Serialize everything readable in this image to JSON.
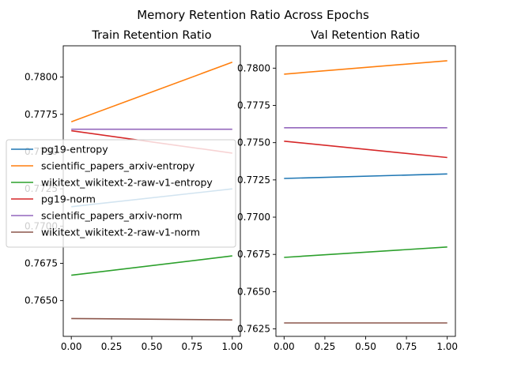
{
  "suptitle": "Memory Retention Ratio Across Epochs",
  "colors": {
    "pg19-entropy": "#1f77b4",
    "scientific_papers_arxiv-entropy": "#ff7f0e",
    "wikitext_wikitext-2-raw-v1-entropy": "#2ca02c",
    "pg19-norm": "#d62728",
    "scientific_papers_arxiv-norm": "#9467bd",
    "wikitext_wikitext-2-raw-v1-norm": "#8c564b"
  },
  "legend": {
    "placement": "center-left",
    "entries": [
      "pg19-entropy",
      "scientific_papers_arxiv-entropy",
      "wikitext_wikitext-2-raw-v1-entropy",
      "pg19-norm",
      "scientific_papers_arxiv-norm",
      "wikitext_wikitext-2-raw-v1-norm"
    ]
  },
  "chart_data": [
    {
      "type": "line",
      "title": "Train Retention Ratio",
      "xlabel": "",
      "ylabel": "",
      "xlim": [
        -0.05,
        1.05
      ],
      "ylim": [
        0.7626,
        0.7821
      ],
      "xticks": [
        "0.00",
        "0.25",
        "0.50",
        "0.75",
        "1.00"
      ],
      "xtick_values": [
        0,
        0.25,
        0.5,
        0.75,
        1.0
      ],
      "yticks": [
        "0.7650",
        "0.7675",
        "0.7700",
        "0.7725",
        "0.7750",
        "0.7775",
        "0.7800"
      ],
      "ytick_values": [
        0.765,
        0.7675,
        0.77,
        0.7725,
        0.775,
        0.7775,
        0.78
      ],
      "grid": false,
      "x": [
        0,
        1
      ],
      "series": [
        {
          "name": "pg19-entropy",
          "values": [
            0.7713,
            0.7725
          ]
        },
        {
          "name": "scientific_papers_arxiv-entropy",
          "values": [
            0.777,
            0.781
          ]
        },
        {
          "name": "wikitext_wikitext-2-raw-v1-entropy",
          "values": [
            0.7667,
            0.768
          ]
        },
        {
          "name": "pg19-norm",
          "values": [
            0.7764,
            0.7749
          ]
        },
        {
          "name": "scientific_papers_arxiv-norm",
          "values": [
            0.7765,
            0.7765
          ]
        },
        {
          "name": "wikitext_wikitext-2-raw-v1-norm",
          "values": [
            0.7638,
            0.7637
          ]
        }
      ]
    },
    {
      "type": "line",
      "title": "Val Retention Ratio",
      "xlabel": "",
      "ylabel": "",
      "xlim": [
        -0.05,
        1.05
      ],
      "ylim": [
        0.762,
        0.7815
      ],
      "xticks": [
        "0.00",
        "0.25",
        "0.50",
        "0.75",
        "1.00"
      ],
      "xtick_values": [
        0,
        0.25,
        0.5,
        0.75,
        1.0
      ],
      "yticks": [
        "0.7625",
        "0.7650",
        "0.7675",
        "0.7700",
        "0.7725",
        "0.7750",
        "0.7775",
        "0.7800"
      ],
      "ytick_values": [
        0.7625,
        0.765,
        0.7675,
        0.77,
        0.7725,
        0.775,
        0.7775,
        0.78
      ],
      "grid": false,
      "x": [
        0,
        1
      ],
      "series": [
        {
          "name": "pg19-entropy",
          "values": [
            0.7726,
            0.7729
          ]
        },
        {
          "name": "scientific_papers_arxiv-entropy",
          "values": [
            0.7796,
            0.7805
          ]
        },
        {
          "name": "wikitext_wikitext-2-raw-v1-entropy",
          "values": [
            0.7673,
            0.768
          ]
        },
        {
          "name": "pg19-norm",
          "values": [
            0.7751,
            0.774
          ]
        },
        {
          "name": "scientific_papers_arxiv-norm",
          "values": [
            0.776,
            0.776
          ]
        },
        {
          "name": "wikitext_wikitext-2-raw-v1-norm",
          "values": [
            0.7629,
            0.7629
          ]
        }
      ]
    }
  ]
}
